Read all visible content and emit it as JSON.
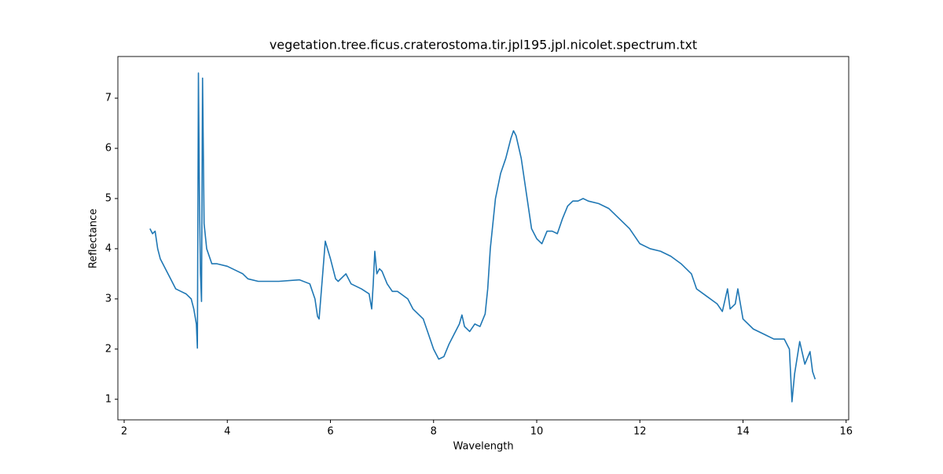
{
  "chart_data": {
    "type": "line",
    "title": "vegetation.tree.ficus.craterostoma.tir.jpl195.jpl.nicolet.spectrum.txt",
    "x_label": "Wavelength",
    "y_label": "Reflectance",
    "color": "#1f77b4",
    "x": [
      2.5,
      2.55,
      2.6,
      2.65,
      2.7,
      2.8,
      2.9,
      3.0,
      3.1,
      3.2,
      3.3,
      3.35,
      3.4,
      3.42,
      3.44,
      3.46,
      3.48,
      3.5,
      3.52,
      3.55,
      3.6,
      3.7,
      3.8,
      4.0,
      4.2,
      4.3,
      4.4,
      4.6,
      5.0,
      5.4,
      5.6,
      5.7,
      5.75,
      5.78,
      5.85,
      5.9,
      6.0,
      6.1,
      6.15,
      6.3,
      6.4,
      6.6,
      6.75,
      6.8,
      6.83,
      6.86,
      6.9,
      6.95,
      7.0,
      7.1,
      7.2,
      7.3,
      7.5,
      7.6,
      7.8,
      7.9,
      8.0,
      8.1,
      8.2,
      8.3,
      8.4,
      8.5,
      8.55,
      8.6,
      8.7,
      8.8,
      8.9,
      9.0,
      9.05,
      9.1,
      9.2,
      9.3,
      9.4,
      9.5,
      9.55,
      9.6,
      9.7,
      9.8,
      9.9,
      10.0,
      10.1,
      10.2,
      10.3,
      10.4,
      10.5,
      10.6,
      10.7,
      10.8,
      10.9,
      11.0,
      11.2,
      11.4,
      11.6,
      11.8,
      12.0,
      12.2,
      12.4,
      12.6,
      12.8,
      13.0,
      13.1,
      13.3,
      13.5,
      13.6,
      13.7,
      13.75,
      13.85,
      13.9,
      14.0,
      14.2,
      14.4,
      14.6,
      14.8,
      14.9,
      14.95,
      15.0,
      15.1,
      15.2,
      15.3,
      15.35,
      15.4
    ],
    "values": [
      4.4,
      4.3,
      4.35,
      4.0,
      3.8,
      3.6,
      3.4,
      3.2,
      3.15,
      3.1,
      3.0,
      2.8,
      2.5,
      2.02,
      7.5,
      5.0,
      3.5,
      2.95,
      7.4,
      4.5,
      4.0,
      3.7,
      3.7,
      3.65,
      3.55,
      3.5,
      3.4,
      3.35,
      3.35,
      3.38,
      3.3,
      3.0,
      2.65,
      2.6,
      3.5,
      4.15,
      3.8,
      3.4,
      3.35,
      3.5,
      3.3,
      3.2,
      3.1,
      2.8,
      3.3,
      3.95,
      3.5,
      3.6,
      3.55,
      3.3,
      3.15,
      3.15,
      3.0,
      2.8,
      2.6,
      2.3,
      2.0,
      1.8,
      1.85,
      2.1,
      2.3,
      2.5,
      2.68,
      2.45,
      2.35,
      2.5,
      2.45,
      2.7,
      3.2,
      4.0,
      5.0,
      5.5,
      5.8,
      6.2,
      6.35,
      6.25,
      5.8,
      5.1,
      4.4,
      4.2,
      4.1,
      4.35,
      4.35,
      4.3,
      4.6,
      4.85,
      4.95,
      4.95,
      5.0,
      4.95,
      4.9,
      4.8,
      4.6,
      4.4,
      4.1,
      4.0,
      3.95,
      3.85,
      3.7,
      3.5,
      3.2,
      3.05,
      2.9,
      2.75,
      3.2,
      2.8,
      2.9,
      3.2,
      2.6,
      2.4,
      2.3,
      2.2,
      2.2,
      2.0,
      0.95,
      1.5,
      2.15,
      1.7,
      1.95,
      1.55,
      1.4
    ],
    "xlim": [
      1.878,
      16.05
    ],
    "ylim": [
      0.59,
      7.83
    ],
    "xticks": [
      2,
      4,
      6,
      8,
      10,
      12,
      14,
      16
    ],
    "yticks": [
      1,
      2,
      3,
      4,
      5,
      6,
      7
    ]
  }
}
